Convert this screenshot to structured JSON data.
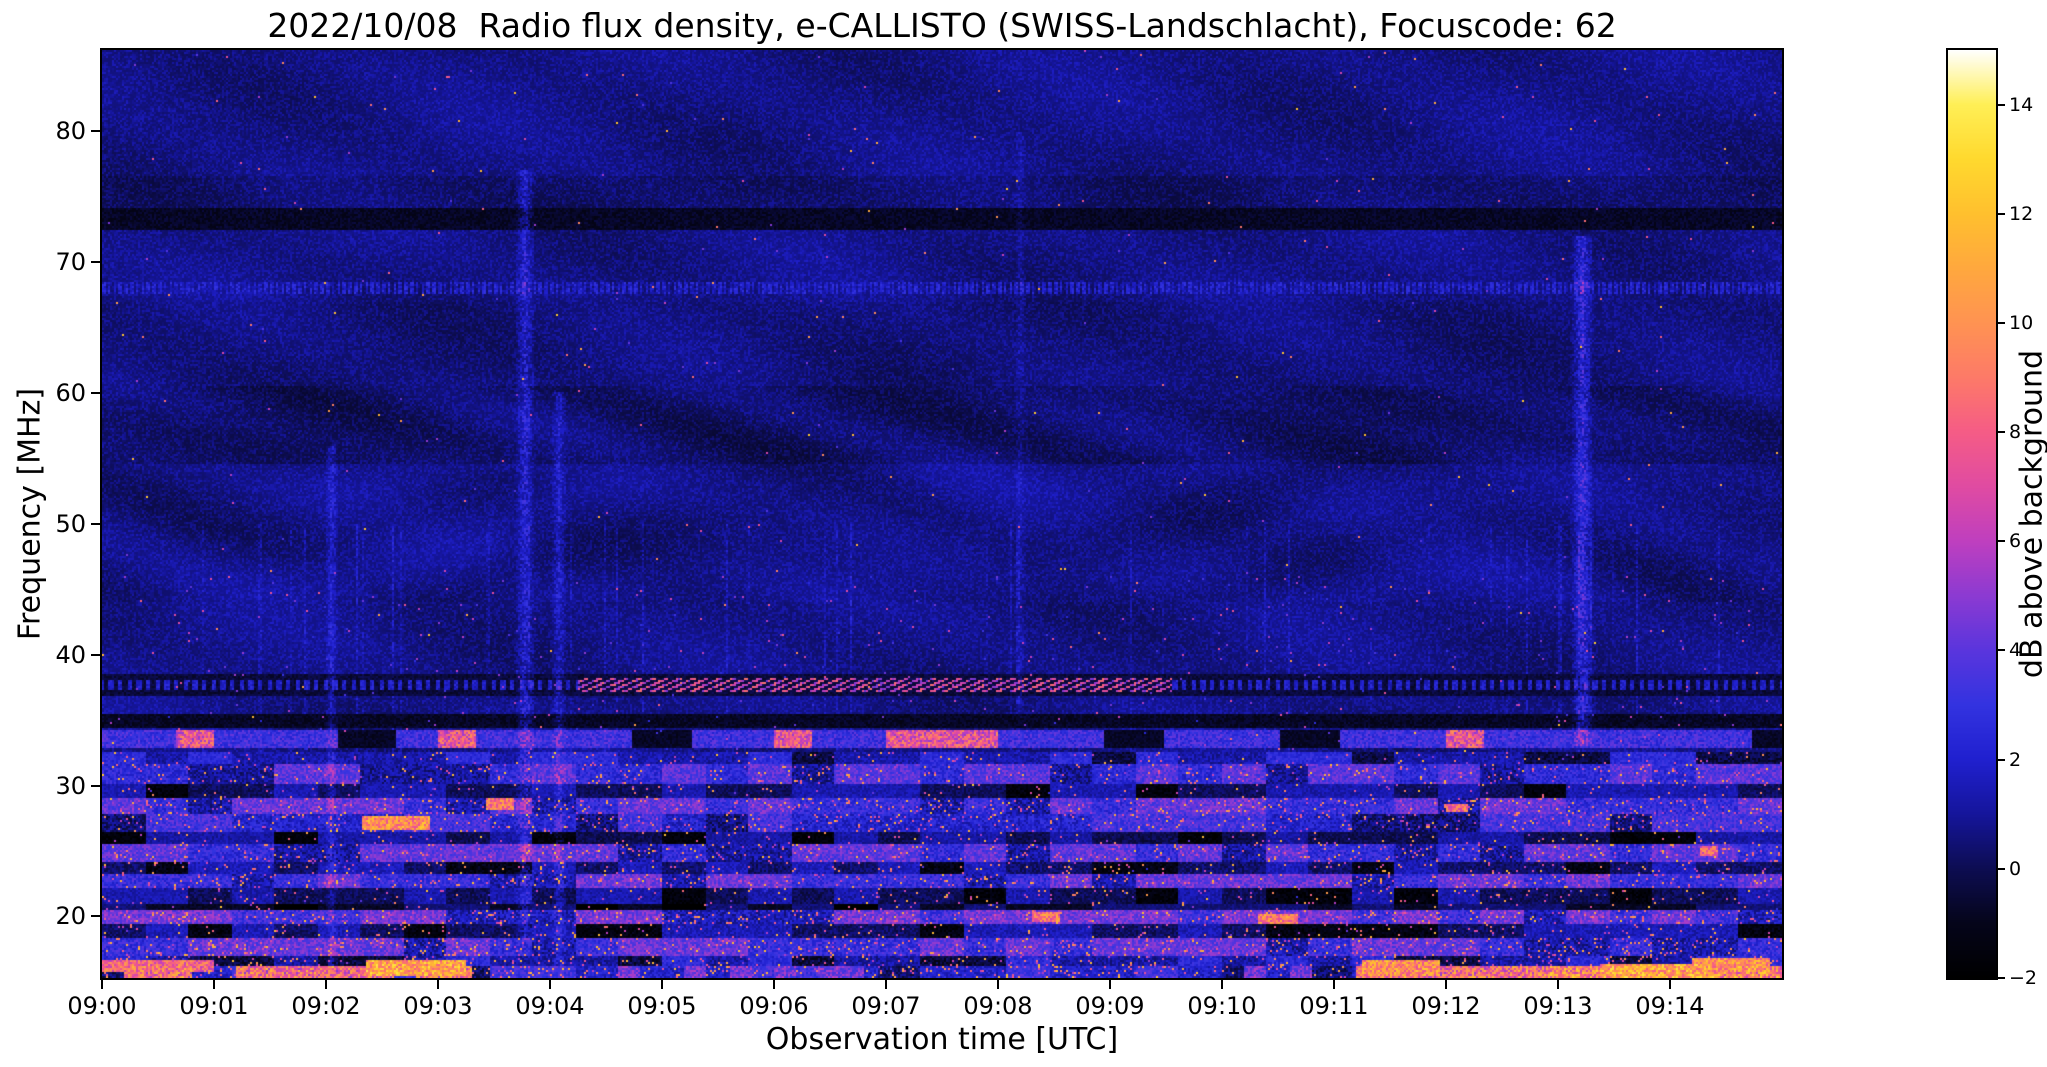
{
  "figure": {
    "background": "#ffffff",
    "text_color": "#000000"
  },
  "chart_data": {
    "type": "heatmap",
    "title": "2022/10/08  Radio flux density, e-CALLISTO (SWISS-Landschlacht), Focuscode: 62",
    "xlabel": "Observation time [UTC]",
    "ylabel": "Frequency [MHz]",
    "colorbar_label": "dB above background",
    "x_range_minutes": [
      0,
      15
    ],
    "x_ticks": [
      {
        "minute": 0,
        "label": "09:00"
      },
      {
        "minute": 1,
        "label": "09:01"
      },
      {
        "minute": 2,
        "label": "09:02"
      },
      {
        "minute": 3,
        "label": "09:03"
      },
      {
        "minute": 4,
        "label": "09:04"
      },
      {
        "minute": 5,
        "label": "09:05"
      },
      {
        "minute": 6,
        "label": "09:06"
      },
      {
        "minute": 7,
        "label": "09:07"
      },
      {
        "minute": 8,
        "label": "09:08"
      },
      {
        "minute": 9,
        "label": "09:09"
      },
      {
        "minute": 10,
        "label": "09:10"
      },
      {
        "minute": 11,
        "label": "09:11"
      },
      {
        "minute": 12,
        "label": "09:12"
      },
      {
        "minute": 13,
        "label": "09:13"
      },
      {
        "minute": 14,
        "label": "09:14"
      }
    ],
    "y_range_mhz": [
      15.3,
      86.2
    ],
    "y_ticks": [
      {
        "value": 20,
        "label": "20"
      },
      {
        "value": 30,
        "label": "30"
      },
      {
        "value": 40,
        "label": "40"
      },
      {
        "value": 50,
        "label": "50"
      },
      {
        "value": 60,
        "label": "60"
      },
      {
        "value": 70,
        "label": "70"
      },
      {
        "value": 80,
        "label": "80"
      }
    ],
    "value_range_db": [
      -2,
      15
    ],
    "colorbar_ticks": [
      {
        "value": 14,
        "label": "14"
      },
      {
        "value": 12,
        "label": "12"
      },
      {
        "value": 10,
        "label": "10"
      },
      {
        "value": 8,
        "label": "8"
      },
      {
        "value": 6,
        "label": "6"
      },
      {
        "value": 4,
        "label": "4"
      },
      {
        "value": 2,
        "label": "2"
      },
      {
        "value": 0,
        "label": "0"
      },
      {
        "value": -2,
        "label": "−2"
      }
    ],
    "colormap_stops": [
      {
        "value": -2,
        "color": "#000000"
      },
      {
        "value": -1,
        "color": "#05051a"
      },
      {
        "value": 0,
        "color": "#0d0d52"
      },
      {
        "value": 1,
        "color": "#15159b"
      },
      {
        "value": 2,
        "color": "#2020cf"
      },
      {
        "value": 3,
        "color": "#3333e0"
      },
      {
        "value": 4,
        "color": "#5a35dd"
      },
      {
        "value": 5,
        "color": "#8c3ad2"
      },
      {
        "value": 6,
        "color": "#bf3fbf"
      },
      {
        "value": 7,
        "color": "#e04ba2"
      },
      {
        "value": 8,
        "color": "#f55c86"
      },
      {
        "value": 9,
        "color": "#fd7a68"
      },
      {
        "value": 10,
        "color": "#ff9352"
      },
      {
        "value": 11,
        "color": "#ffa83e"
      },
      {
        "value": 12,
        "color": "#ffc02e"
      },
      {
        "value": 13,
        "color": "#ffd92e"
      },
      {
        "value": 14,
        "color": "#ffef56"
      },
      {
        "value": 15,
        "color": "#ffffff"
      }
    ],
    "features": {
      "description": "Quiet blue noise background; dark ionospheric absorption band near 73 MHz; dotted carrier near 68 MHz; diagonal dashed ionosonde sweep near 37.5 MHz between 09:04.3 and 09:09.5; bright broadcast band at 33-34 MHz; dense striped RFI below 32 MHz; very bright orange/yellow segments along the bottom edge near 16 MHz at 09:00-09:03 and 09:11-09:15; faint vertical streaks at 09:02, 09:03.8, 09:04.1 and a strong blue vertical streak at 09:13.2",
      "dark_bands": [
        {
          "f": [
            72.5,
            74.2
          ],
          "db": -1.3
        },
        {
          "f": [
            36.8,
            38.6
          ],
          "db": -0.9
        },
        {
          "f": [
            34.35,
            35.4
          ],
          "db": -1.3
        }
      ],
      "dotted_line": {
        "f": [
          67.6,
          68.4
        ],
        "db": 2.0
      },
      "burst_dashes": {
        "f": [
          37.2,
          38.15
        ],
        "t": [
          4.25,
          9.55
        ],
        "db": 8
      },
      "bright_band_33mhz": {
        "f": [
          32.9,
          34.25
        ],
        "db": 3.5,
        "hot_db": 7.5
      },
      "low_bands": [
        {
          "f": [
            31.6,
            32.6
          ],
          "base": 0.5,
          "amp": 1.6,
          "hot": 0.02
        },
        {
          "f": [
            30.1,
            31.6
          ],
          "base": 1.5,
          "amp": 2.2,
          "hot": 0.045
        },
        {
          "f": [
            29.1,
            30.1
          ],
          "base": -0.5,
          "amp": 1.2,
          "hot": 0.015
        },
        {
          "f": [
            27.9,
            29.1
          ],
          "base": 1.7,
          "amp": 2.4,
          "hot": 0.06
        },
        {
          "f": [
            26.4,
            27.9
          ],
          "base": 1.0,
          "amp": 2.2,
          "hot": 0.05
        },
        {
          "f": [
            25.5,
            26.4
          ],
          "base": -0.7,
          "amp": 1.2,
          "hot": 0.02
        },
        {
          "f": [
            24.2,
            25.5
          ],
          "base": 1.6,
          "amp": 2.3,
          "hot": 0.05
        },
        {
          "f": [
            23.3,
            24.2
          ],
          "base": -0.4,
          "amp": 1.4,
          "hot": 0.03
        },
        {
          "f": [
            22.1,
            23.3
          ],
          "base": 1.8,
          "amp": 2.3,
          "hot": 0.05
        },
        {
          "f": [
            21.0,
            22.1
          ],
          "base": -0.6,
          "amp": 1.3,
          "hot": 0.025
        },
        {
          "f": [
            20.5,
            21.0
          ],
          "base": -1.2,
          "amp": 0.8,
          "hot": 0.01
        },
        {
          "f": [
            19.4,
            20.5
          ],
          "base": 2.0,
          "amp": 2.4,
          "hot": 0.07
        },
        {
          "f": [
            18.3,
            19.4
          ],
          "base": -0.5,
          "amp": 1.4,
          "hot": 0.03
        },
        {
          "f": [
            17.0,
            18.3
          ],
          "base": 1.7,
          "amp": 2.4,
          "hot": 0.07
        },
        {
          "f": [
            16.2,
            17.0
          ],
          "base": 0.3,
          "amp": 1.8,
          "hot": 0.05
        },
        {
          "f": [
            15.0,
            16.2
          ],
          "base": 1.0,
          "amp": 2.0,
          "hot": 0.08
        }
      ],
      "bottom_row": {
        "f": [
          15.0,
          16.2
        ],
        "bright_t": [
          [
            0,
            3.3
          ],
          [
            10.8,
            15.0
          ]
        ],
        "db": 9
      },
      "vertical_streaks": [
        {
          "t": 2.05,
          "f": [
            16,
            56
          ],
          "boost": 1.2,
          "width": 0.06
        },
        {
          "t": 3.78,
          "f": [
            18,
            77
          ],
          "boost": 1.6,
          "width": 0.09
        },
        {
          "t": 4.08,
          "f": [
            16,
            60
          ],
          "boost": 1.3,
          "width": 0.07
        },
        {
          "t": 8.2,
          "f": [
            35,
            80
          ],
          "boost": 0.6,
          "width": 0.05
        },
        {
          "t": 13.22,
          "f": [
            33,
            72
          ],
          "boost": 2.2,
          "width": 0.1
        }
      ],
      "hot_spots": [
        {
          "t": 2.62,
          "f": 27.2,
          "rt": 0.3,
          "rf": 0.55,
          "db": 12
        },
        {
          "t": 2.8,
          "f": 16.0,
          "rt": 0.45,
          "rf": 0.6,
          "db": 13
        },
        {
          "t": 0.5,
          "f": 16.2,
          "rt": 0.5,
          "rf": 0.5,
          "db": 10
        },
        {
          "t": 3.55,
          "f": 28.6,
          "rt": 0.12,
          "rf": 0.45,
          "db": 11
        },
        {
          "t": 8.43,
          "f": 20.0,
          "rt": 0.12,
          "rf": 0.4,
          "db": 11
        },
        {
          "t": 10.5,
          "f": 19.8,
          "rt": 0.18,
          "rf": 0.4,
          "db": 11
        },
        {
          "t": 11.6,
          "f": 16.0,
          "rt": 0.35,
          "rf": 0.6,
          "db": 12
        },
        {
          "t": 13.9,
          "f": 15.8,
          "rt": 0.5,
          "rf": 0.6,
          "db": 13
        },
        {
          "t": 14.55,
          "f": 16.3,
          "rt": 0.35,
          "rf": 0.5,
          "db": 12
        },
        {
          "t": 12.1,
          "f": 28.3,
          "rt": 0.1,
          "rf": 0.35,
          "db": 10
        },
        {
          "t": 14.35,
          "f": 25.0,
          "rt": 0.08,
          "rf": 0.35,
          "db": 10
        }
      ]
    }
  }
}
